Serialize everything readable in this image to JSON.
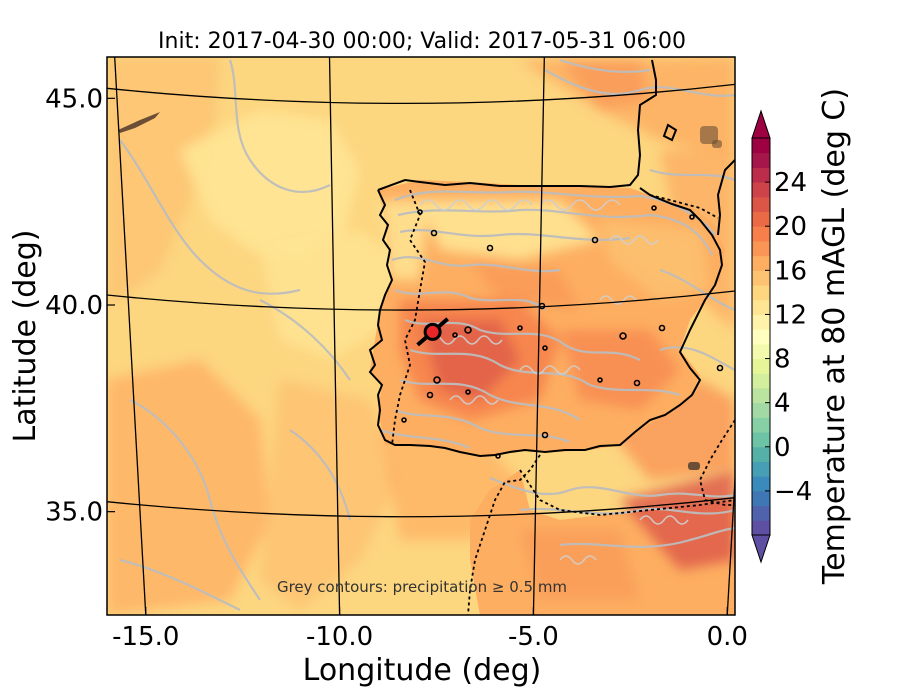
{
  "figure": {
    "title": "Init: 2017-04-30 00:00; Valid: 2017-05-31 06:00",
    "xlabel": "Longitude (deg)",
    "ylabel": "Latitude (deg)",
    "annotation": "Grey contours: precipitation  ≥ 0.5 mm"
  },
  "map": {
    "x_range": [
      -16.0,
      0.2
    ],
    "y_range": [
      32.5,
      46.0
    ],
    "x_ticks": [
      {
        "value": -15.0,
        "label": "-15.0"
      },
      {
        "value": -10.0,
        "label": "-10.0"
      },
      {
        "value": -5.0,
        "label": "-5.0"
      },
      {
        "value": 0.0,
        "label": "0.0"
      }
    ],
    "y_ticks": [
      {
        "value": 45.0,
        "label": "45.0"
      },
      {
        "value": 40.0,
        "label": "40.0"
      },
      {
        "value": 35.0,
        "label": "35.0"
      }
    ],
    "graticule_lon": [
      -15,
      -10,
      -5,
      0
    ],
    "graticule_lat": [
      45,
      40,
      35
    ],
    "marker": {
      "lon": -7.6,
      "lat": 39.35,
      "color": "#e8262a",
      "edge": "#000000",
      "icon": "location-marker-icon"
    },
    "background_color": "#fdd680",
    "precip_contour_color": "#bdbdbd",
    "coast_color": "#000000"
  },
  "colorbar": {
    "label": "Temperature at 80 mAGL (deg C)",
    "range": [
      -8,
      28
    ],
    "extend": "both",
    "ticks": [
      {
        "value": 24,
        "label": "24"
      },
      {
        "value": 20,
        "label": "20"
      },
      {
        "value": 16,
        "label": "16"
      },
      {
        "value": 12,
        "label": "12"
      },
      {
        "value": 8,
        "label": "8"
      },
      {
        "value": 4,
        "label": "4"
      },
      {
        "value": 0,
        "label": "0"
      },
      {
        "value": -4,
        "label": "−4"
      }
    ],
    "colors": [
      "#5e4fa2",
      "#4f62ab",
      "#3f77b4",
      "#3a8bbb",
      "#469fb4",
      "#55b0a8",
      "#6cc3a5",
      "#87cfa4",
      "#a2d9a4",
      "#bbe4a0",
      "#d3ee9c",
      "#e6f598",
      "#f3faae",
      "#ffffbf",
      "#fff2aa",
      "#fee593",
      "#fed680",
      "#fdc372",
      "#fdae61",
      "#f99555",
      "#f67f4b",
      "#ea6a46",
      "#dc5647",
      "#ce4249",
      "#bb2d4b",
      "#a5164a",
      "#9e0142"
    ]
  }
}
